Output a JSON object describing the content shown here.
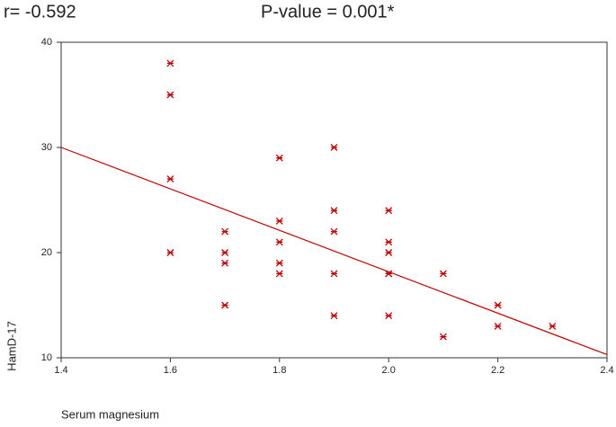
{
  "chart_data": {
    "type": "scatter",
    "annotations": [
      "r= -0.592",
      "P-value = 0.001*"
    ],
    "x_label": "Serum magnesium",
    "y_label": "HamD-17",
    "series": [
      {
        "color": "#c00000",
        "x": [
          1.6,
          1.6,
          1.6,
          1.6,
          1.7,
          1.7,
          1.7,
          1.7,
          1.8,
          1.8,
          1.8,
          1.8,
          1.8,
          1.9,
          1.9,
          1.9,
          1.9,
          1.9,
          2.0,
          2.0,
          2.0,
          2.0,
          2.0,
          2.0,
          2.1,
          2.1,
          2.2,
          2.2,
          2.3
        ],
        "values": [
          38,
          35,
          27,
          20,
          22,
          20,
          19,
          15,
          29,
          23,
          21,
          19,
          18,
          30,
          24,
          22,
          18,
          14,
          24,
          21,
          20,
          18,
          18,
          14,
          18,
          12,
          15,
          13,
          13
        ]
      }
    ],
    "fit_line": {
      "color": "#c00000",
      "x": [
        1.4,
        2.4
      ],
      "values": [
        30,
        10.3
      ]
    },
    "xlim": [
      1.4,
      2.4
    ],
    "xticks": [
      1.4,
      1.6,
      1.8,
      {
        "value": 2,
        "label": "2.0"
      },
      2.2,
      2.4
    ],
    "ylim": [
      10,
      40
    ],
    "yticks": [
      10,
      20,
      30,
      40
    ],
    "grid": false
  }
}
